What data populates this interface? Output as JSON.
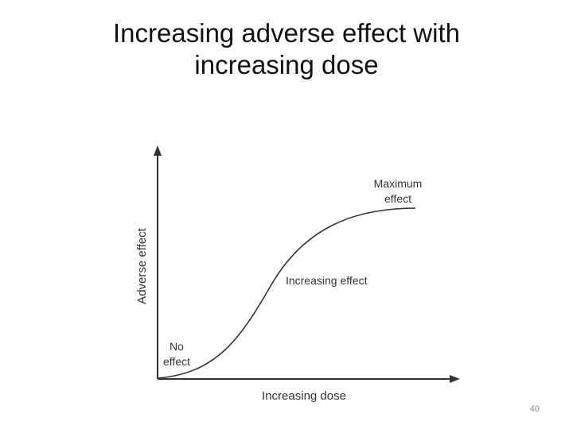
{
  "header": {
    "title": "Increasing adverse effect with increasing dose"
  },
  "diagram": {
    "x_axis_label": "Increasing dose",
    "y_axis_label": "Adverse effect",
    "annotations": [
      {
        "lines": [
          "Maximum",
          "effect"
        ]
      },
      {
        "lines": [
          "Increasing effect"
        ]
      },
      {
        "lines": [
          "No",
          "effect"
        ]
      }
    ]
  },
  "footer": {
    "slide_number": "40"
  }
}
